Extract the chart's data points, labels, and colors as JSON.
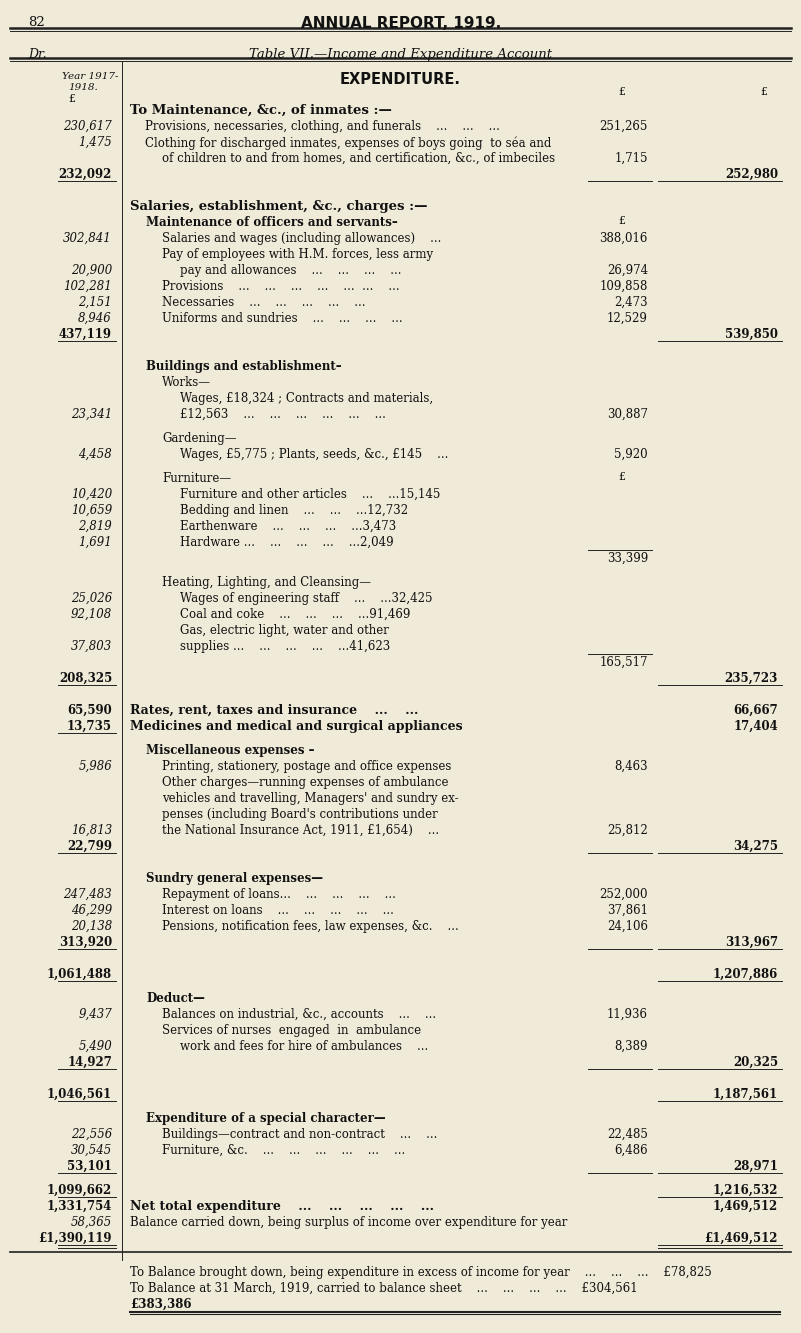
{
  "bg_color": "#f0ead8",
  "page_num": "82",
  "report_title": "ANNUAL REPORT, 1919.",
  "table_label_left": "Dr.",
  "table_title": "Table VII.—Income and Expenditure Account",
  "expenditure_header": "EXPENDITURE.",
  "rows": [
    {
      "type": "section_header",
      "text": "To Maintenance, &c., of inmates :—",
      "lnum": "",
      "c3": "",
      "c4": ""
    },
    {
      "type": "data",
      "text": "Provisions, necessaries, clothing, and funerals    ...    ...    ...",
      "lnum": "230,617",
      "c3": "251,265",
      "c4": "",
      "indent": 1
    },
    {
      "type": "data",
      "text": "Clothing for discharged inmates, expenses of boys going  to séa and",
      "lnum": "1,475",
      "c3": "",
      "c4": "",
      "indent": 1
    },
    {
      "type": "data",
      "text": "of children to and from homes, and certification, &c., of imbeciles",
      "lnum": "",
      "c3": "1,715",
      "c4": "",
      "indent": 2
    },
    {
      "type": "subtotal",
      "lnum": "232,092",
      "c3": "",
      "c4": "252,980",
      "ul_left": true,
      "ul_right": true,
      "ul_c3": true
    },
    {
      "type": "spacer"
    },
    {
      "type": "section_header",
      "text": "Salaries, establishment, &c., charges :—"
    },
    {
      "type": "subsection",
      "text": "Maintenance of officers and servants–",
      "c3_hdr": "£"
    },
    {
      "type": "data",
      "text": "Salaries and wages (including allowances)    ...",
      "lnum": "302,841",
      "c3": "388,016",
      "c4": "",
      "indent": 2
    },
    {
      "type": "data",
      "text": "Pay of employees with H.M. forces, less army",
      "lnum": "",
      "c3": "",
      "c4": "",
      "indent": 2
    },
    {
      "type": "data",
      "text": "pay and allowances    ...    ...    ...    ...",
      "lnum": "20,900",
      "c3": "26,974",
      "c4": "",
      "indent": 3
    },
    {
      "type": "data",
      "text": "Provisions    ...    ...    ...    ...    ...  ...    ...",
      "lnum": "102,281",
      "c3": "109,858",
      "c4": "",
      "indent": 2
    },
    {
      "type": "data",
      "text": "Necessaries    ...    ...    ...    ...    ...",
      "lnum": "2,151",
      "c3": "2,473",
      "c4": "",
      "indent": 2
    },
    {
      "type": "data",
      "text": "Uniforms and sundries    ...    ...    ...    ...",
      "lnum": "8,946",
      "c3": "12,529",
      "c4": "",
      "indent": 2
    },
    {
      "type": "subtotal",
      "lnum": "437,119",
      "c3": "",
      "c4": "539,850",
      "ul_left": true,
      "ul_right": true
    },
    {
      "type": "spacer"
    },
    {
      "type": "subsection",
      "text": "Buildings and establishment–"
    },
    {
      "type": "data",
      "text": "Works—",
      "lnum": "",
      "c3": "",
      "c4": "",
      "indent": 2
    },
    {
      "type": "data",
      "text": "Wages, £18,324 ; Contracts and materials,",
      "lnum": "",
      "c3": "",
      "c4": "",
      "indent": 3
    },
    {
      "type": "data",
      "text": "£12,563    ...    ...    ...    ...    ...    ...",
      "lnum": "23,341",
      "c3": "30,887",
      "c4": "",
      "indent": 3
    },
    {
      "type": "spacer_sm"
    },
    {
      "type": "data",
      "text": "Gardening—",
      "lnum": "",
      "c3": "",
      "c4": "",
      "indent": 2
    },
    {
      "type": "data",
      "text": "Wages, £5,775 ; Plants, seeds, &c., £145    ...",
      "lnum": "4,458",
      "c3": "5,920",
      "c4": "",
      "indent": 3
    },
    {
      "type": "spacer_sm"
    },
    {
      "type": "data",
      "text": "Furniture—",
      "lnum": "",
      "c3_hdr": "£",
      "c3": "",
      "c4": "",
      "indent": 2
    },
    {
      "type": "data",
      "text": "Furniture and other articles    ...    ...15,145",
      "lnum": "10,420",
      "c3": "",
      "c4": "",
      "indent": 3
    },
    {
      "type": "data",
      "text": "Bedding and linen    ...    ...    ...12,732",
      "lnum": "10,659",
      "c3": "",
      "c4": "",
      "indent": 3
    },
    {
      "type": "data",
      "text": "Earthenware    ...    ...    ...    ...3,473",
      "lnum": "2,819",
      "c3": "",
      "c4": "",
      "indent": 3
    },
    {
      "type": "data",
      "text": "Hardware ...    ...    ...    ...    ...2,049",
      "lnum": "1,691",
      "c3": "",
      "c4": "",
      "indent": 3
    },
    {
      "type": "data",
      "text": "",
      "lnum": "",
      "c3": "33,399",
      "c4": "",
      "indent": 3,
      "ul_c3_above": true
    },
    {
      "type": "spacer_sm"
    },
    {
      "type": "data",
      "text": "Heating, Lighting, and Cleansing—",
      "lnum": "",
      "c3": "",
      "c4": "",
      "indent": 2
    },
    {
      "type": "data",
      "text": "Wages of engineering staff    ...    ...32,425",
      "lnum": "25,026",
      "c3": "",
      "c4": "",
      "indent": 3
    },
    {
      "type": "data",
      "text": "Coal and coke    ...    ...    ...    ...91,469",
      "lnum": "92,108",
      "c3": "",
      "c4": "",
      "indent": 3
    },
    {
      "type": "data",
      "text": "Gas, electric light, water and other",
      "lnum": "",
      "c3": "",
      "c4": "",
      "indent": 3
    },
    {
      "type": "data",
      "text": "supplies ...    ...    ...    ...    ...41,623",
      "lnum": "37,803",
      "c3": "",
      "c4": "",
      "indent": 3
    },
    {
      "type": "data",
      "text": "",
      "lnum": "",
      "c3": "165,517",
      "c4": "",
      "indent": 3,
      "ul_c3_above": true
    },
    {
      "type": "subtotal",
      "lnum": "208,325",
      "c3": "",
      "c4": "235,723",
      "ul_left": true,
      "ul_right": true
    },
    {
      "type": "spacer"
    },
    {
      "type": "data_bold",
      "text": "Rates, rent, taxes and insurance    ...    ...",
      "lnum": "65,590",
      "c3": "",
      "c4": "66,667",
      "indent": 0
    },
    {
      "type": "data_bold",
      "text": "Medicines and medical and surgical appliances",
      "lnum": "13,735",
      "c3": "",
      "c4": "17,404",
      "indent": 0,
      "ul_left": true
    },
    {
      "type": "spacer_sm"
    },
    {
      "type": "subsection",
      "text": "Miscellaneous expenses –"
    },
    {
      "type": "data",
      "text": "Printing, stationery, postage and office expenses",
      "lnum": "5,986",
      "c3": "8,463",
      "c4": "",
      "indent": 2
    },
    {
      "type": "data",
      "text": "Other charges—running expenses of ambulance",
      "lnum": "",
      "c3": "",
      "c4": "",
      "indent": 2
    },
    {
      "type": "data",
      "text": "vehicles and travelling, Managers' and sundry ex-",
      "lnum": "",
      "c3": "",
      "c4": "",
      "indent": 2
    },
    {
      "type": "data",
      "text": "penses (including Board's contributions under",
      "lnum": "",
      "c3": "",
      "c4": "",
      "indent": 2
    },
    {
      "type": "data",
      "text": "the National Insurance Act, 1911, £1,654)    ...",
      "lnum": "16,813",
      "c3": "25,812",
      "c4": "",
      "indent": 2
    },
    {
      "type": "subtotal",
      "lnum": "22,799",
      "c3": "",
      "c4": "34,275",
      "ul_left": true,
      "ul_right": true,
      "ul_c3": true
    },
    {
      "type": "spacer"
    },
    {
      "type": "subsection",
      "text": "Sundry general expenses—"
    },
    {
      "type": "data",
      "text": "Repayment of loans...    ...    ...    ...    ...",
      "lnum": "247,483",
      "c3": "252,000",
      "c4": "",
      "indent": 2
    },
    {
      "type": "data",
      "text": "Interest on loans    ...    ...    ...    ...    ...",
      "lnum": "46,299",
      "c3": "37,861",
      "c4": "",
      "indent": 2
    },
    {
      "type": "data",
      "text": "Pensions, notification fees, law expenses, &c.    ...",
      "lnum": "20,138",
      "c3": "24,106",
      "c4": "",
      "indent": 2
    },
    {
      "type": "subtotal",
      "lnum": "313,920",
      "c3": "",
      "c4": "313,967",
      "ul_left": true,
      "ul_right": true,
      "ul_c3": true
    },
    {
      "type": "spacer"
    },
    {
      "type": "subtotal",
      "lnum": "1,061,488",
      "c3": "",
      "c4": "1,207,886",
      "ul_left": true,
      "ul_right": true
    },
    {
      "type": "spacer_sm"
    },
    {
      "type": "subsection",
      "text": "Deduct—"
    },
    {
      "type": "data",
      "text": "Balances on industrial, &c., accounts    ...    ...",
      "lnum": "9,437",
      "c3": "11,936",
      "c4": "",
      "indent": 2
    },
    {
      "type": "data",
      "text": "Services of nurses  engaged  in  ambulance",
      "lnum": "",
      "c3": "",
      "c4": "",
      "indent": 2
    },
    {
      "type": "data",
      "text": "work and fees for hire of ambulances    ...",
      "lnum": "5,490",
      "c3": "8,389",
      "c4": "",
      "indent": 3
    },
    {
      "type": "subtotal",
      "lnum": "14,927",
      "c3": "",
      "c4": "20,325",
      "ul_left": true,
      "ul_right": true,
      "ul_c3": true
    },
    {
      "type": "spacer"
    },
    {
      "type": "subtotal",
      "lnum": "1,046,561",
      "c3": "",
      "c4": "1,187,561",
      "ul_left": true,
      "ul_right": true
    },
    {
      "type": "spacer_sm"
    },
    {
      "type": "subsection",
      "text": "Expenditure of a special character—"
    },
    {
      "type": "data",
      "text": "Buildings—contract and non-contract    ...    ...",
      "lnum": "22,556",
      "c3": "22,485",
      "c4": "",
      "indent": 2
    },
    {
      "type": "data",
      "text": "Furniture, &c.    ...    ...    ...    ...    ...    ...",
      "lnum": "30,545",
      "c3": "6,486",
      "c4": "",
      "indent": 2
    },
    {
      "type": "subtotal",
      "lnum": "53,101",
      "c3": "",
      "c4": "28,971",
      "ul_left": true,
      "ul_right": true,
      "ul_c3": true
    },
    {
      "type": "spacer_sm"
    },
    {
      "type": "subtotal",
      "lnum": "1,099,662",
      "c3": "",
      "c4": "1,216,532",
      "ul_left": true,
      "ul_c4_single": true
    },
    {
      "type": "total_row",
      "text": "Net total expenditure    ...    ...    ...    ...    ...",
      "lnum": "1,331,754",
      "c3": "",
      "c4": "1,469,512"
    },
    {
      "type": "data",
      "text": "Balance carried down, being surplus of income over expenditure for year",
      "lnum": "58,365",
      "c3": "",
      "c4": "",
      "indent": 0
    },
    {
      "type": "final_total",
      "lnum": "£1,390,119",
      "c4": "£1,469,512"
    }
  ],
  "footer": [
    {
      "text": "To Balance brought down, being expenditure in excess of income for year    ...    ...    ...    £78,825",
      "bold": false
    },
    {
      "text": "To Balance at 31 March, 1919, carried to balance sheet    ...    ...    ...    ...    £304,561",
      "bold": false
    },
    {
      "text": "£383,386",
      "bold": true
    }
  ]
}
